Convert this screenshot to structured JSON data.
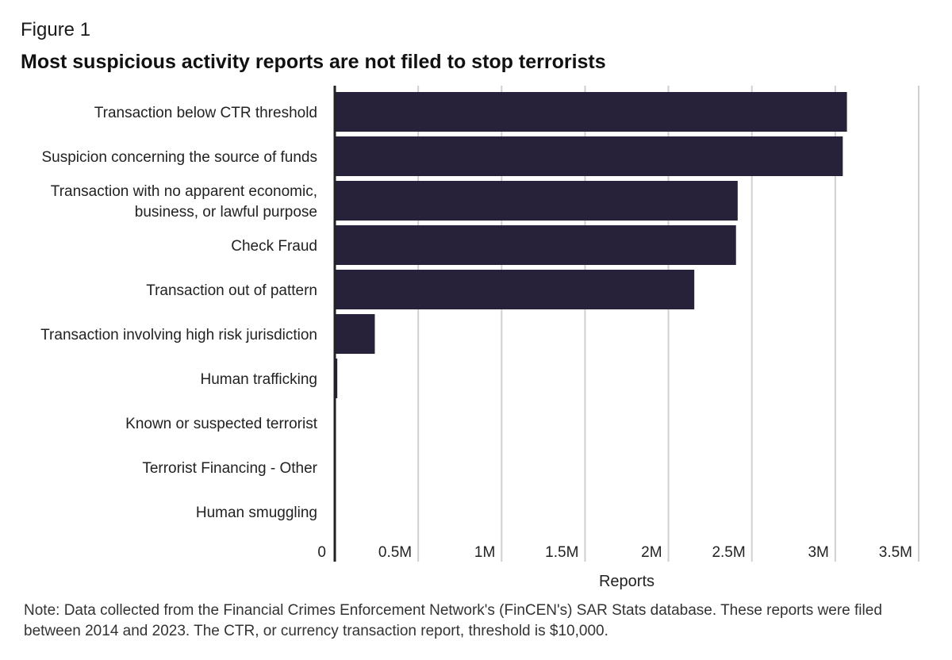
{
  "figure_label": "Figure 1",
  "title": "Most suspicious activity reports are not filed to stop terrorists",
  "note": "Note: Data collected from the Financial Crimes Enforcement Network's (FinCEN's) SAR Stats database. These reports were filed between 2014 and 2023. The CTR, or currency transaction report, threshold is $10,000.",
  "colors": {
    "bar": "#272239",
    "grid": "#d0d0d0",
    "axis": "#222222"
  },
  "chart_data": {
    "type": "bar",
    "orientation": "horizontal",
    "xlabel": "Reports",
    "xlim": [
      0,
      3500000
    ],
    "ticks": [
      {
        "value": 0,
        "label": "0"
      },
      {
        "value": 500000,
        "label": "0.5M"
      },
      {
        "value": 1000000,
        "label": "1M"
      },
      {
        "value": 1500000,
        "label": "1.5M"
      },
      {
        "value": 2000000,
        "label": "2M"
      },
      {
        "value": 2500000,
        "label": "2.5M"
      },
      {
        "value": 3000000,
        "label": "3M"
      },
      {
        "value": 3500000,
        "label": "3.5M"
      }
    ],
    "grid": true,
    "categories": [
      [
        "Transaction below CTR threshold"
      ],
      [
        "Suspicion concerning the source of funds"
      ],
      [
        "Transaction with no apparent economic,",
        "business, or lawful purpose"
      ],
      [
        "Check Fraud"
      ],
      [
        "Transaction out of pattern"
      ],
      [
        "Transaction involving high risk jurisdiction"
      ],
      [
        "Human trafficking"
      ],
      [
        "Known or suspected terrorist"
      ],
      [
        "Terrorist Financing - Other"
      ],
      [
        "Human smuggling"
      ]
    ],
    "values": [
      3070000,
      3045000,
      2415000,
      2405000,
      2155000,
      240000,
      15000,
      6000,
      4000,
      3000
    ]
  }
}
